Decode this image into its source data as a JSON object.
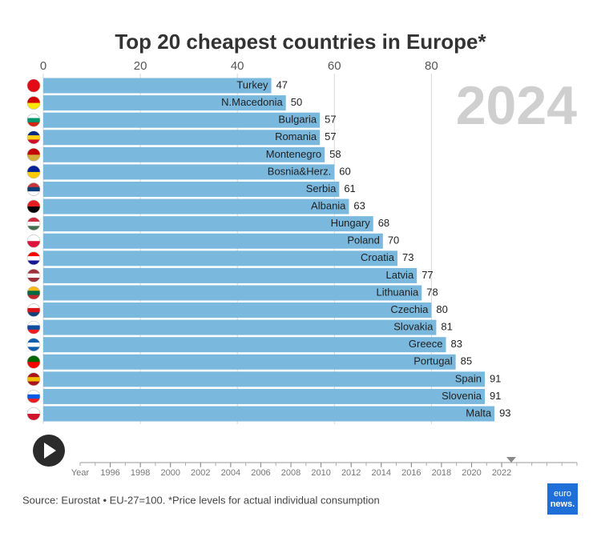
{
  "chart_data": {
    "type": "bar",
    "orientation": "horizontal",
    "title": "Top 20 cheapest countries in Europe*",
    "year_label": "2024",
    "categories": [
      "Turkey",
      "N.Macedonia",
      "Bulgaria",
      "Romania",
      "Montenegro",
      "Bosnia&Herz.",
      "Serbia",
      "Albania",
      "Hungary",
      "Poland",
      "Croatia",
      "Latvia",
      "Lithuania",
      "Czechia",
      "Slovakia",
      "Greece",
      "Portugal",
      "Spain",
      "Slovenia",
      "Malta"
    ],
    "values": [
      47,
      50,
      57,
      57,
      58,
      60,
      61,
      63,
      68,
      70,
      73,
      77,
      78,
      80,
      81,
      83,
      85,
      91,
      91,
      93
    ],
    "color": "#7ab8de",
    "xlim": [
      0,
      110
    ],
    "xticks": [
      0,
      20,
      40,
      60,
      80
    ],
    "grid": true,
    "timeline": {
      "label": "Year",
      "xlim": [
        1994,
        2027
      ],
      "xticks": [
        1996,
        1998,
        2000,
        2002,
        2004,
        2006,
        2008,
        2010,
        2012,
        2014,
        2016,
        2018,
        2020,
        2022
      ]
    },
    "source": "Source: Eurostat • EU-27=100. *Price levels for actual individual consumption",
    "logo": [
      "euro",
      "news."
    ]
  }
}
